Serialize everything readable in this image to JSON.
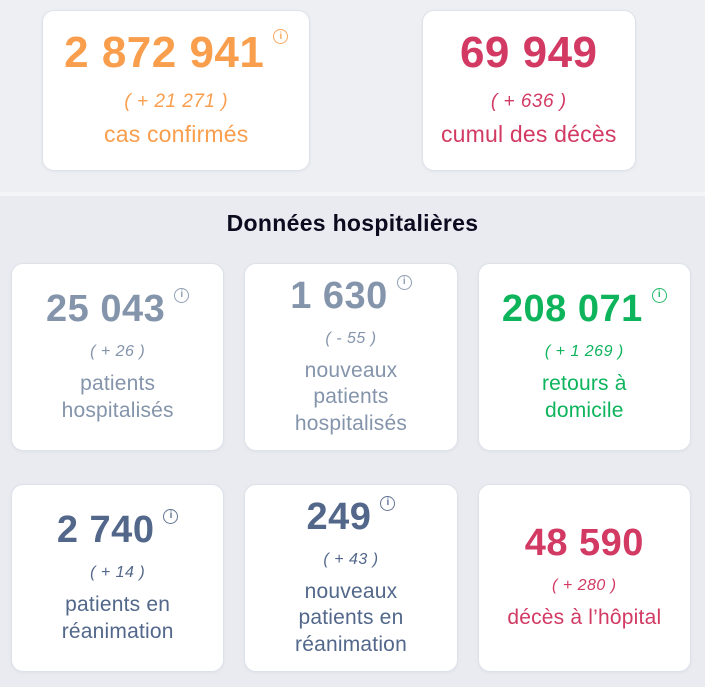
{
  "page": {
    "section_title": "Données hospitalières"
  },
  "icons": {
    "info_glyph": "i"
  },
  "colors": {
    "orange": "#f99e4d",
    "crimson": "#d23a63",
    "slate_light": "#8494ab",
    "slate_dark": "#52678a",
    "green": "#0eb45c",
    "title": "#0b0b1f",
    "top_background": "#edeff3",
    "section_background": "#e9ebf0",
    "card_background": "#ffffff"
  },
  "summary_cards": [
    {
      "value": "2 872 941",
      "delta": "( + 21 271 )",
      "label": "cas confirmés",
      "color": "#f99e4d",
      "has_info": true
    },
    {
      "value": "69 949",
      "delta": "( + 636 )",
      "label": "cumul des décès",
      "color": "#d23a63",
      "has_info": false
    }
  ],
  "hospital_cards": [
    {
      "value": "25 043",
      "delta": "( + 26 )",
      "label": "patients\nhospitalisés",
      "color": "#8494ab",
      "has_info": true
    },
    {
      "value": "1 630",
      "delta": "( - 55 )",
      "label": "nouveaux\npatients\nhospitalisés",
      "color": "#8494ab",
      "has_info": true
    },
    {
      "value": "208 071",
      "delta": "( + 1 269 )",
      "label": "retours à\ndomicile",
      "color": "#0eb45c",
      "has_info": true
    },
    {
      "value": "2 740",
      "delta": "( + 14 )",
      "label": "patients en\nréanimation",
      "color": "#52678a",
      "has_info": true
    },
    {
      "value": "249",
      "delta": "( + 43 )",
      "label": "nouveaux\npatients en\nréanimation",
      "color": "#52678a",
      "has_info": true
    },
    {
      "value": "48 590",
      "delta": "( + 280 )",
      "label": "décès à l’hôpital",
      "color": "#d23a63",
      "has_info": false
    }
  ]
}
